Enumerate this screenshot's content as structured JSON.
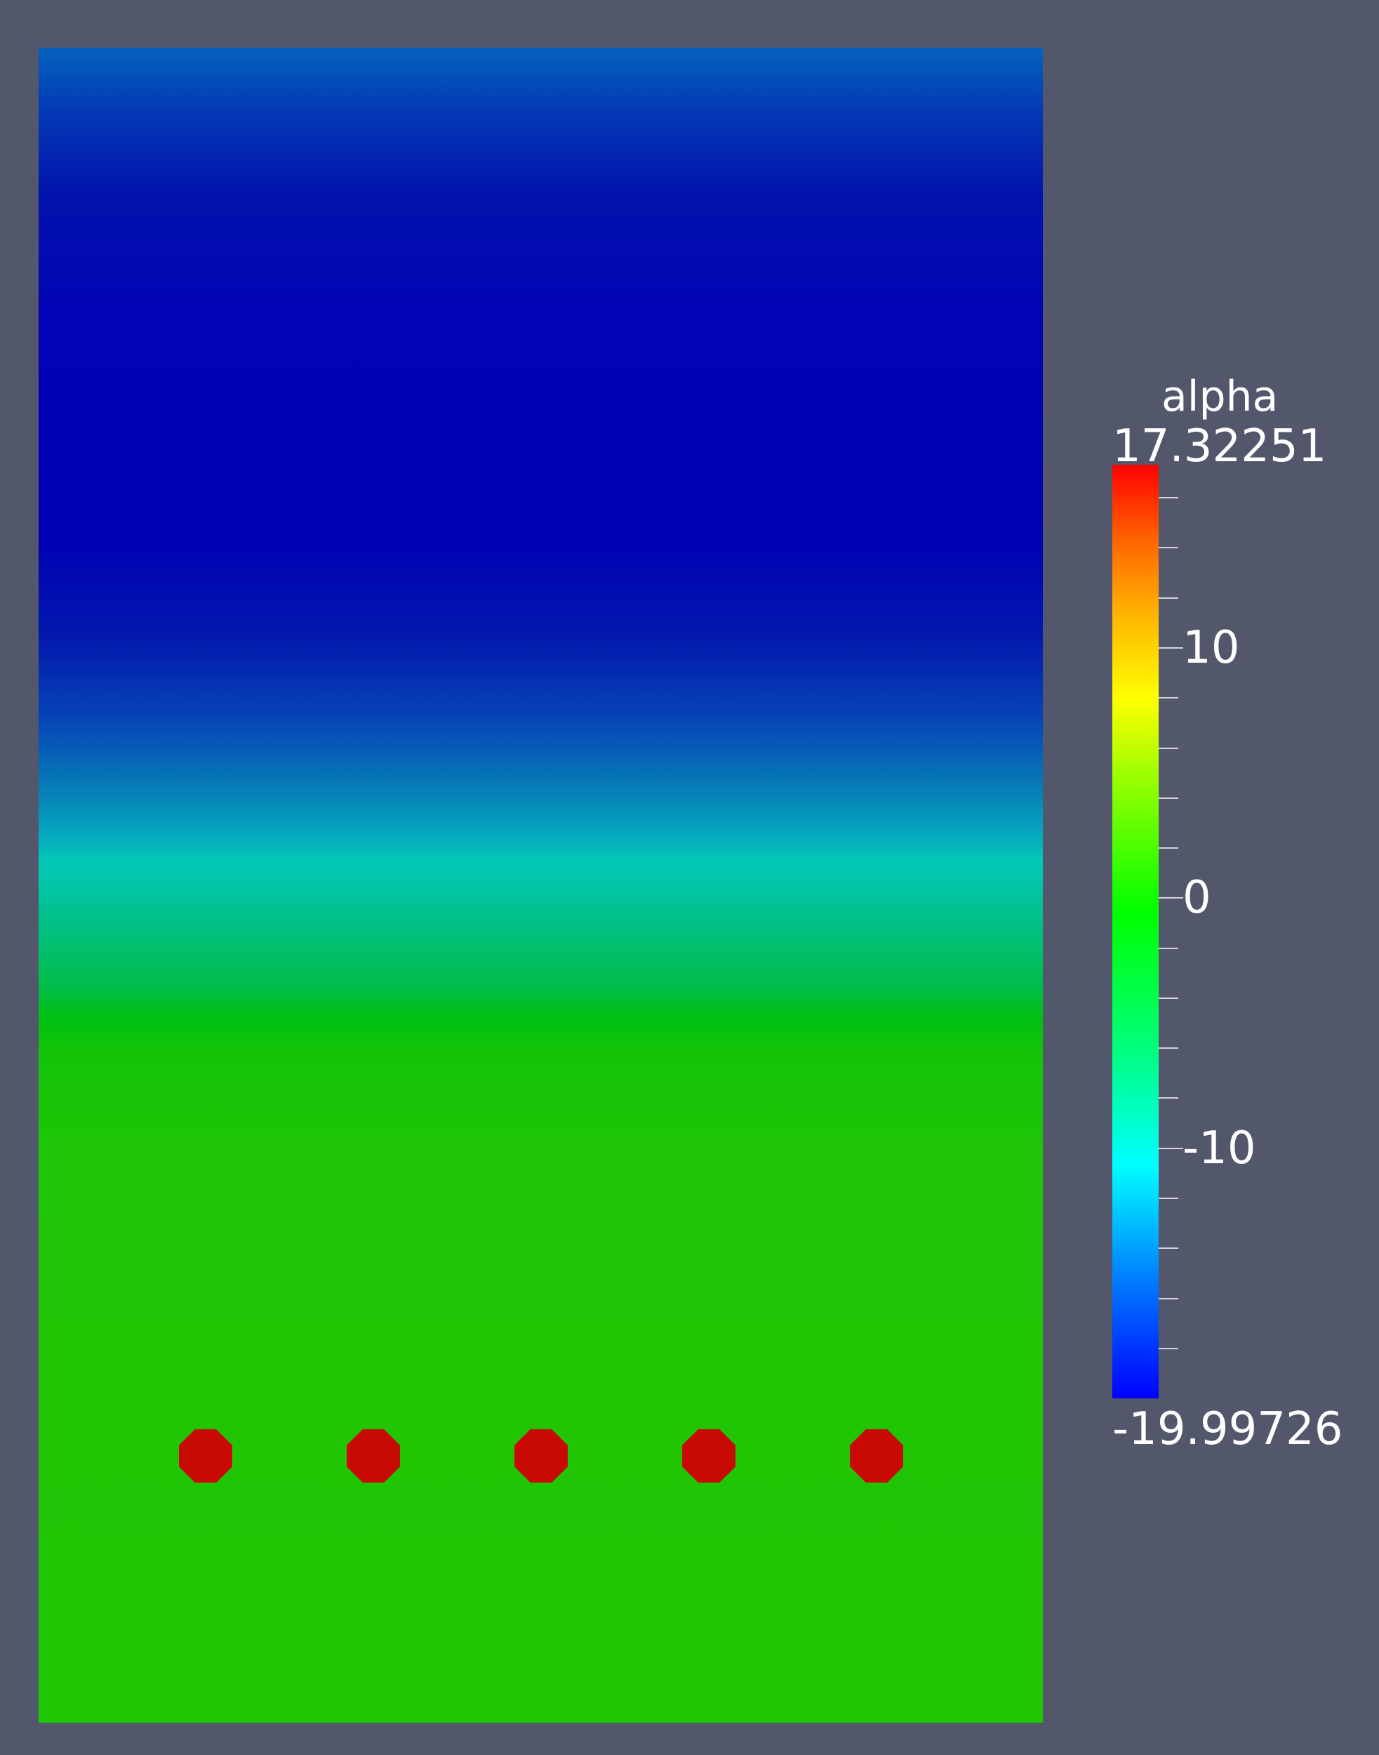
{
  "legend": {
    "title": "alpha",
    "max_label": "17.32251",
    "min_label": "-19.99726",
    "range": [
      -19.99726,
      17.32251
    ],
    "major_ticks": [
      {
        "value": 10,
        "label": "10"
      },
      {
        "value": 0,
        "label": "0"
      },
      {
        "value": -10,
        "label": "-10"
      }
    ],
    "minor_tick_step": 2
  },
  "colors": {
    "background": "#52576b",
    "markers": "#c80a02"
  },
  "markers": {
    "count": 5
  }
}
